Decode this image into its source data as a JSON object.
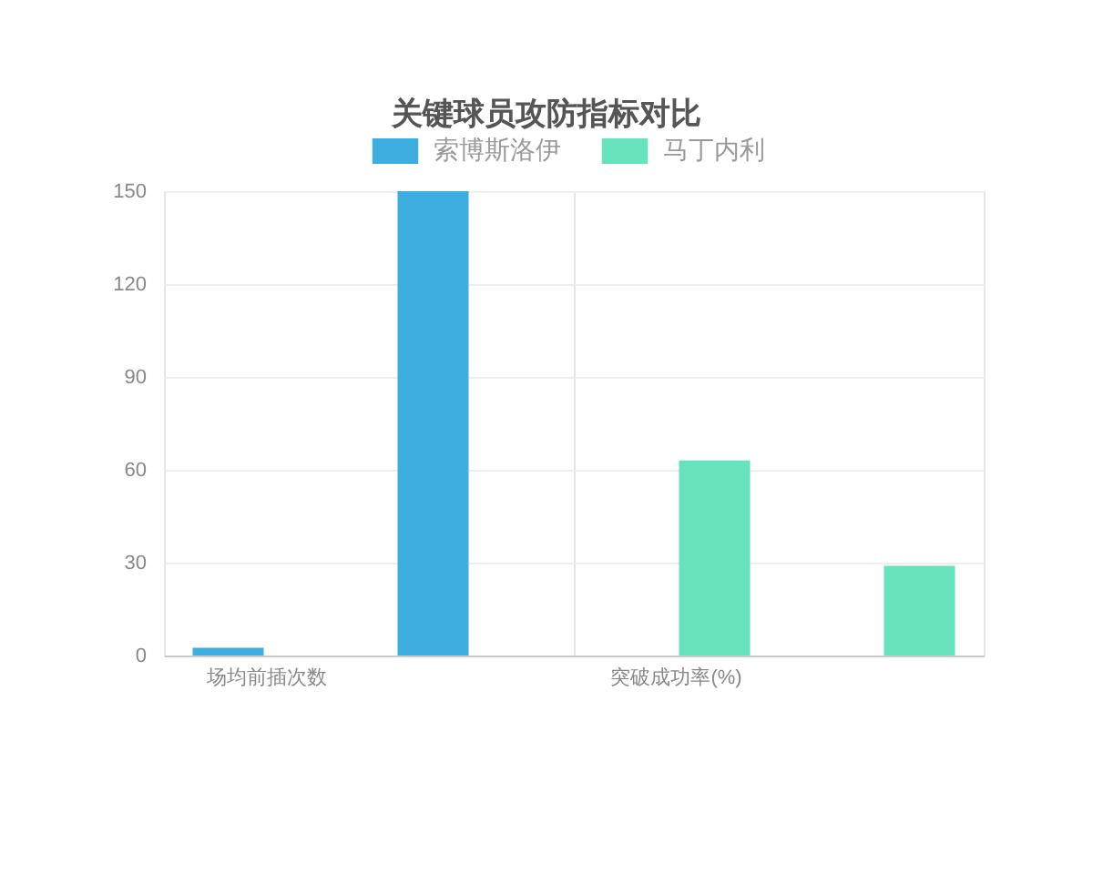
{
  "chart_data": {
    "type": "bar",
    "title": "关键球员攻防指标对比",
    "categories": [
      "场均前插次数",
      null,
      "突破成功率(%)",
      null
    ],
    "series": [
      {
        "name": "索博斯洛伊",
        "color": "#3eaee0",
        "values": [
          2.5,
          150,
          null,
          null
        ]
      },
      {
        "name": "马丁内利",
        "color": "#66e2bd",
        "values": [
          null,
          null,
          63,
          29
        ]
      }
    ],
    "ylim": [
      0,
      150
    ],
    "yticks": [
      0,
      30,
      60,
      90,
      120,
      150
    ],
    "grid": true,
    "legend": "top"
  }
}
